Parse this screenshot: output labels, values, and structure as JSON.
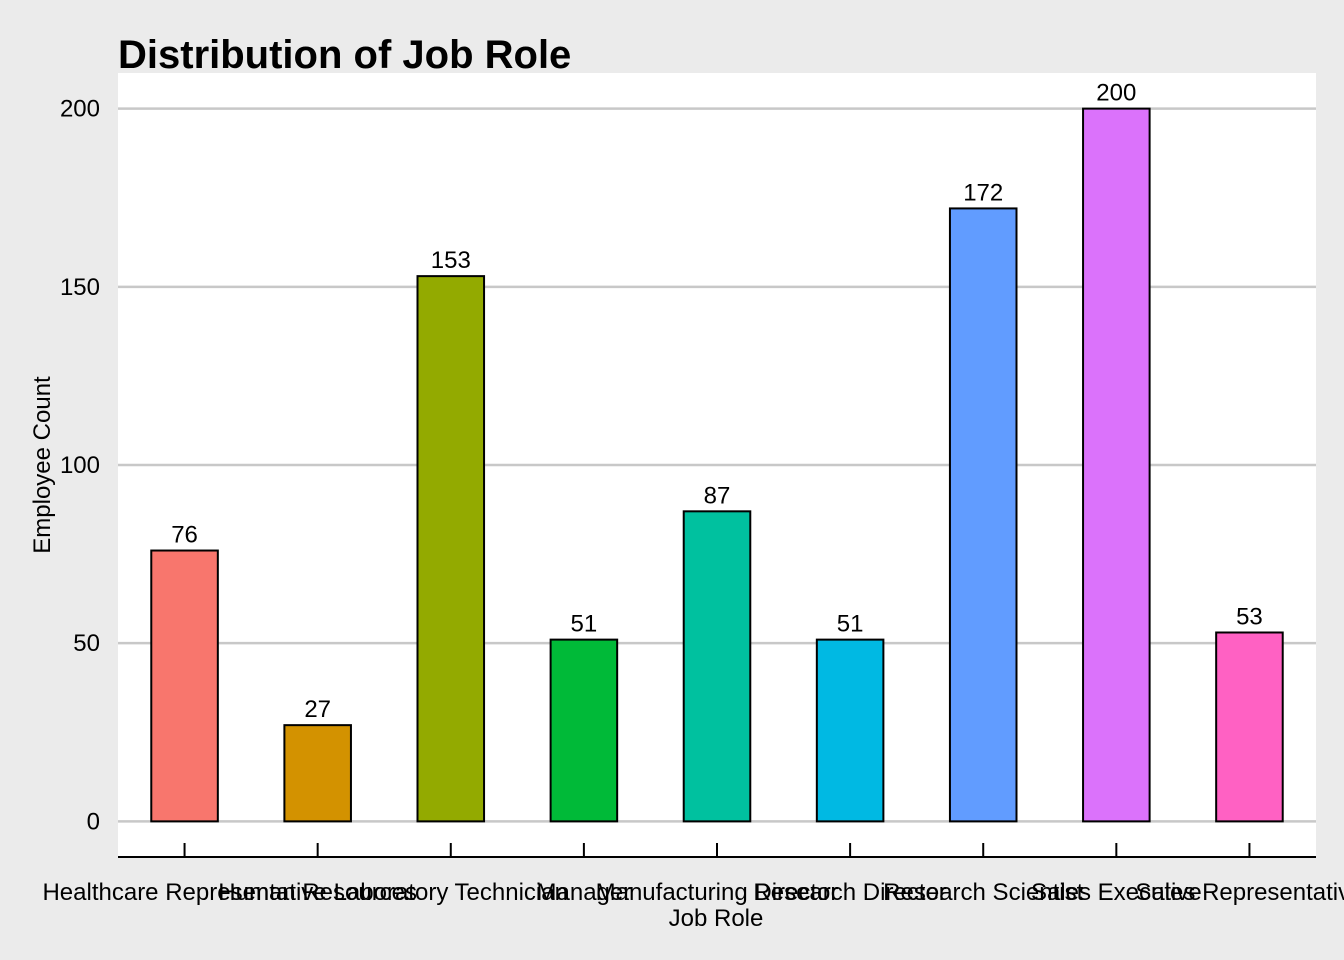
{
  "chart_data": {
    "type": "bar",
    "title": "Distribution of Job Role",
    "xlabel": "Job Role",
    "ylabel": "Employee Count",
    "categories": [
      "Healthcare Representative",
      "Human Resources",
      "Laboratory Technician",
      "Manager",
      "Manufacturing Director",
      "Research Director",
      "Research Scientist",
      "Sales Executive",
      "Sales Representative"
    ],
    "values": [
      76,
      27,
      153,
      51,
      87,
      51,
      172,
      200,
      53
    ],
    "colors": [
      "#F8766D",
      "#D39200",
      "#93AA00",
      "#00BA38",
      "#00C19F",
      "#00B9E3",
      "#619CFF",
      "#DB72FB",
      "#FF61C3"
    ],
    "yticks": [
      0,
      50,
      100,
      150,
      200
    ],
    "ylim": [
      -10,
      210
    ],
    "grid": "horizontal",
    "background": "#ebebeb",
    "gridline_color": "#c8c8c8"
  }
}
